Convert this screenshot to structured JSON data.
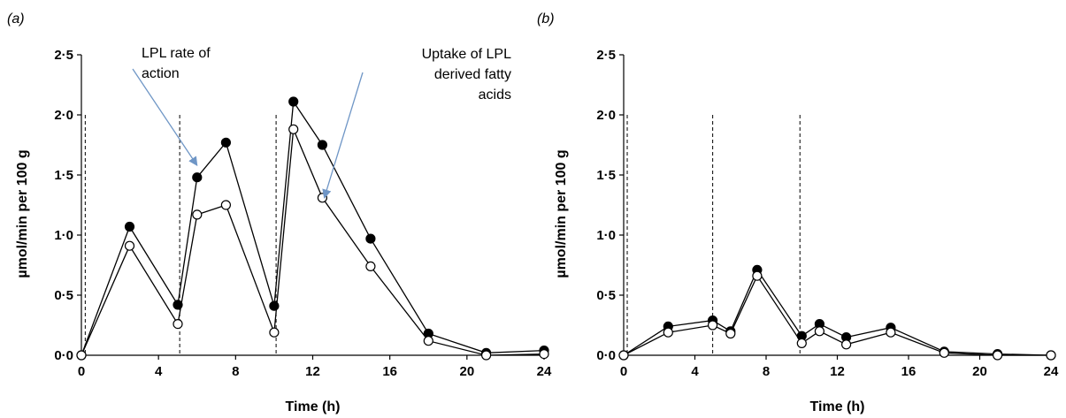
{
  "chart_data": [
    {
      "type": "line",
      "panel_label": "(a)",
      "xlabel": "Time (h)",
      "ylabel": "µmol/min per 100 g",
      "xlim": [
        0,
        24
      ],
      "ylim": [
        0,
        2.5
      ],
      "xticks": [
        "0",
        "4",
        "8",
        "12",
        "16",
        "20",
        "24"
      ],
      "yticks": [
        "0·0",
        "0·5",
        "1·0",
        "1·5",
        "2·0",
        "2·5"
      ],
      "vlines": [
        0.2,
        5.1,
        10.1
      ],
      "grid": false,
      "series": [
        {
          "marker": "filled",
          "x": [
            0,
            2.5,
            5,
            6,
            7.5,
            10,
            11,
            12.5,
            15,
            18,
            21,
            24
          ],
          "y": [
            0.0,
            1.07,
            0.42,
            1.48,
            1.77,
            0.41,
            2.11,
            1.75,
            0.97,
            0.18,
            0.02,
            0.04
          ]
        },
        {
          "marker": "open",
          "x": [
            0,
            2.5,
            5,
            6,
            7.5,
            10,
            11,
            12.5,
            15,
            18,
            21,
            24
          ],
          "y": [
            0.0,
            0.91,
            0.26,
            1.17,
            1.25,
            0.19,
            1.88,
            1.31,
            0.74,
            0.12,
            0.0,
            0.01
          ]
        }
      ],
      "annotations": [
        {
          "lines": [
            "LPL rate of",
            "action"
          ],
          "arrow_to": [
            6.0,
            1.58
          ],
          "color": "#6f96c6"
        },
        {
          "lines": [
            "Uptake of LPL",
            "derived fatty",
            "acids"
          ],
          "arrow_to": [
            12.6,
            1.31
          ],
          "color": "#6f96c6"
        }
      ]
    },
    {
      "type": "line",
      "panel_label": "(b)",
      "xlabel": "Time (h)",
      "ylabel": "µmol/min per 100 g",
      "xlim": [
        0,
        24
      ],
      "ylim": [
        0,
        2.5
      ],
      "xticks": [
        "0",
        "4",
        "8",
        "12",
        "16",
        "20",
        "24"
      ],
      "yticks": [
        "0·0",
        "0·5",
        "1·0",
        "1·5",
        "2·0",
        "2·5"
      ],
      "vlines": [
        0.2,
        5.0,
        9.9
      ],
      "grid": false,
      "series": [
        {
          "marker": "filled",
          "x": [
            0,
            2.5,
            5,
            6,
            7.5,
            10,
            11,
            12.5,
            15,
            18,
            21,
            24
          ],
          "y": [
            0.0,
            0.24,
            0.29,
            0.2,
            0.71,
            0.16,
            0.26,
            0.15,
            0.23,
            0.03,
            0.01,
            0.0
          ]
        },
        {
          "marker": "open",
          "x": [
            0,
            2.5,
            5,
            6,
            7.5,
            10,
            11,
            12.5,
            15,
            18,
            21,
            24
          ],
          "y": [
            0.0,
            0.19,
            0.25,
            0.18,
            0.66,
            0.1,
            0.2,
            0.09,
            0.19,
            0.02,
            0.0,
            0.0
          ]
        }
      ]
    }
  ]
}
